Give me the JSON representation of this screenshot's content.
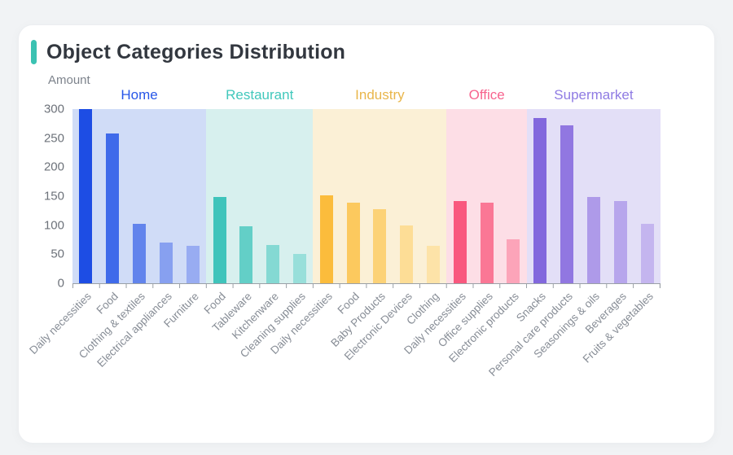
{
  "page": {
    "background": "#f1f3f5",
    "card_background": "#ffffff",
    "title": "Object Categories Distribution",
    "title_accent_color": "#3BC2B2"
  },
  "chart_data": {
    "type": "bar",
    "title": "Object Categories Distribution",
    "ylabel": "Amount",
    "xlabel": "",
    "ylim": [
      0,
      300
    ],
    "yticks": [
      0,
      50,
      100,
      150,
      200,
      250,
      300
    ],
    "grid": false,
    "legend_position": "group-labels-above-bands",
    "axis_color": "#9aa0a6",
    "groups": [
      {
        "name": "Home",
        "label_color": "#2857E8",
        "band_color": "#D0DCF7",
        "bars": [
          {
            "label": "Daily necessities",
            "value": 300,
            "color": "#1D4DE4"
          },
          {
            "label": "Food",
            "value": 258,
            "color": "#3F6AEA"
          },
          {
            "label": "Clothing & textiles",
            "value": 103,
            "color": "#6284EC"
          },
          {
            "label": "Electrical appliances",
            "value": 70,
            "color": "#87A0F0"
          },
          {
            "label": "Furniture",
            "value": 65,
            "color": "#98ACF2"
          }
        ]
      },
      {
        "name": "Restaurant",
        "label_color": "#41C8BC",
        "band_color": "#D7F0EE",
        "bars": [
          {
            "label": "Food",
            "value": 149,
            "color": "#3FC4BB"
          },
          {
            "label": "Tableware",
            "value": 98,
            "color": "#63CFC7"
          },
          {
            "label": "Kitchenware",
            "value": 66,
            "color": "#84D9D3"
          },
          {
            "label": "Cleaning supplies",
            "value": 51,
            "color": "#98DFDA"
          }
        ]
      },
      {
        "name": "Industry",
        "label_color": "#E9B64B",
        "band_color": "#FBF0D6",
        "bars": [
          {
            "label": "Daily necessities",
            "value": 151,
            "color": "#FBBC3C"
          },
          {
            "label": "Food",
            "value": 139,
            "color": "#FCC95E"
          },
          {
            "label": "Baby Products",
            "value": 127,
            "color": "#FCD277"
          },
          {
            "label": "Electronic Devices",
            "value": 100,
            "color": "#FDDD96"
          },
          {
            "label": "Clothing",
            "value": 64,
            "color": "#FDE3A8"
          }
        ]
      },
      {
        "name": "Office",
        "label_color": "#F7648E",
        "band_color": "#FDDEE6",
        "bars": [
          {
            "label": "Daily necessities",
            "value": 142,
            "color": "#F9587E"
          },
          {
            "label": "Office supplies",
            "value": 139,
            "color": "#FA7795"
          },
          {
            "label": "Electronic products",
            "value": 76,
            "color": "#FCA4B9"
          }
        ]
      },
      {
        "name": "Supermarket",
        "label_color": "#8F7BE3",
        "band_color": "#E3DFF7",
        "bars": [
          {
            "label": "Snacks",
            "value": 285,
            "color": "#8268DD"
          },
          {
            "label": "Personal care products",
            "value": 272,
            "color": "#9177E1"
          },
          {
            "label": "Seasonings & oils",
            "value": 149,
            "color": "#AE9AE9"
          },
          {
            "label": "Beverages",
            "value": 141,
            "color": "#B7A6EC"
          },
          {
            "label": "Fruits & vegetables",
            "value": 102,
            "color": "#C4B5EF"
          }
        ]
      }
    ]
  }
}
